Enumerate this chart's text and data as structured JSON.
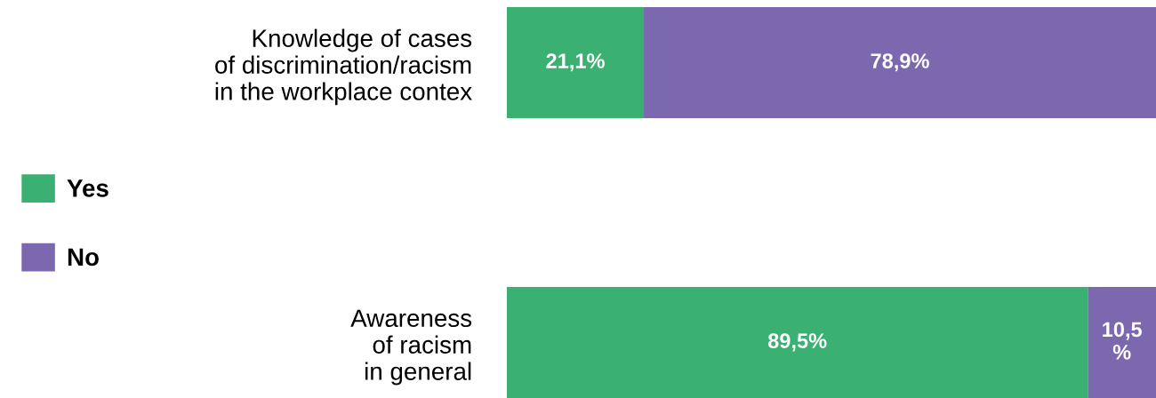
{
  "chart_data": {
    "type": "bar",
    "orientation": "horizontal",
    "stacked": true,
    "categories": [
      "Knowledge of cases\nof discrimination/racism\nin the workplace contex",
      "Awareness\nof racism\nin general"
    ],
    "series": [
      {
        "name": "Yes",
        "color": "#3bb073",
        "values": [
          21.1,
          89.5
        ],
        "value_labels": [
          "21,1%",
          "89,5%"
        ]
      },
      {
        "name": "No",
        "color": "#7b68ae",
        "values": [
          78.9,
          10.5
        ],
        "value_labels": [
          "78,9%",
          "10,5%"
        ]
      }
    ],
    "legend": "left",
    "tick_labels": "y"
  }
}
